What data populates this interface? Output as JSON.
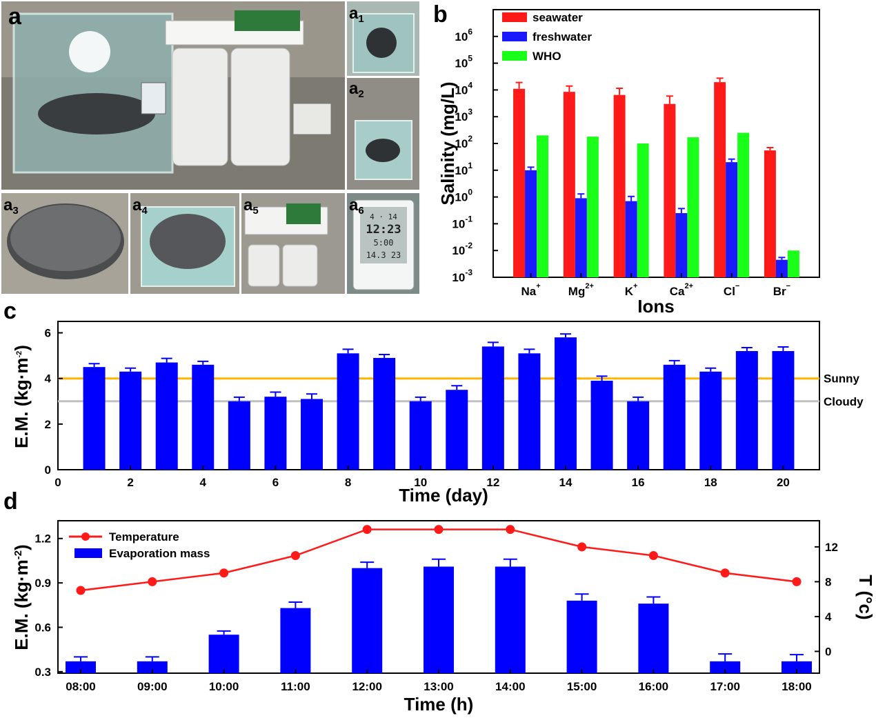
{
  "panels": {
    "a": "a",
    "a1": "a",
    "a2": "a",
    "a3": "a",
    "a4": "a",
    "a5": "a",
    "a6": "a",
    "a1_sub": "1",
    "a2_sub": "2",
    "a3_sub": "3",
    "a4_sub": "4",
    "a5_sub": "5",
    "a6_sub": "6",
    "b": "b",
    "c": "c",
    "d": "d"
  },
  "photos": {
    "a6_display": {
      "line1": "4 · 14",
      "line2": "12:23",
      "line3": "5:00",
      "line4": "14.3 23"
    }
  },
  "colors": {
    "seawater": "#ff1a1a",
    "freshwater": "#1a1aff",
    "who": "#1aff1a",
    "bar_blue": "#0000ff",
    "sunny": "#ffb400",
    "cloudy": "#c0c0c0",
    "temperature": "#ff1a1a"
  },
  "chart_data": [
    {
      "id": "b",
      "type": "bar",
      "scale": "log",
      "title": "",
      "xlabel": "Ions",
      "ylabel": "Salinity (mg/L)",
      "ylim": [
        0.001,
        10000000
      ],
      "yticks": [
        "10",
        "10",
        "10",
        "10",
        "10",
        "10",
        "10",
        "10",
        "10",
        "10"
      ],
      "ytick_exps": [
        "-3",
        "-2",
        "-1",
        "0",
        "1",
        "2",
        "3",
        "4",
        "5",
        "6"
      ],
      "categories": [
        "Na",
        "Mg",
        "K",
        "Ca",
        "Cl",
        "Br"
      ],
      "category_sups": [
        "+",
        "2+",
        "+",
        "2+",
        "−",
        "−"
      ],
      "series": [
        {
          "name": "seawater",
          "values": [
            11000,
            8500,
            6500,
            3000,
            19500,
            55
          ],
          "errors": [
            8000,
            5500,
            5000,
            2900,
            8000,
            15
          ]
        },
        {
          "name": "freshwater",
          "values": [
            10,
            0.9,
            0.7,
            0.25,
            20,
            0.0045
          ],
          "errors": [
            3,
            0.4,
            0.35,
            0.12,
            6,
            0.001
          ]
        },
        {
          "name": "WHO",
          "values": [
            200,
            180,
            100,
            170,
            250,
            0.01
          ],
          "errors": [
            0,
            0,
            0,
            0,
            0,
            0
          ]
        }
      ],
      "legend_position": "top-left"
    },
    {
      "id": "c",
      "type": "bar",
      "title": "",
      "xlabel": "Time (day)",
      "ylabel": "E.M. (kg·m",
      "ylabel_sup": "-2",
      "ylabel_end": ")",
      "xlim": [
        0,
        21
      ],
      "ylim": [
        0,
        6.5
      ],
      "xticks": [
        "0",
        "2",
        "4",
        "6",
        "8",
        "10",
        "12",
        "14",
        "16",
        "18",
        "20"
      ],
      "yticks": [
        "0",
        "2",
        "4",
        "6"
      ],
      "x": [
        1,
        2,
        3,
        4,
        5,
        6,
        7,
        8,
        9,
        10,
        11,
        12,
        13,
        14,
        15,
        16,
        17,
        18,
        19,
        20
      ],
      "values": [
        4.5,
        4.3,
        4.7,
        4.6,
        3.0,
        3.2,
        3.1,
        5.1,
        4.9,
        3.0,
        3.5,
        5.4,
        5.1,
        5.8,
        3.9,
        3.0,
        4.6,
        4.3,
        5.2,
        5.2
      ],
      "errors": [
        0.15,
        0.15,
        0.18,
        0.15,
        0.18,
        0.2,
        0.22,
        0.18,
        0.15,
        0.18,
        0.18,
        0.18,
        0.18,
        0.15,
        0.2,
        0.18,
        0.18,
        0.15,
        0.15,
        0.18
      ],
      "reference_lines": [
        {
          "name": "Sunny",
          "value": 4.0
        },
        {
          "name": "Cloudy",
          "value": 3.0
        }
      ]
    },
    {
      "id": "d",
      "type": "bar+line",
      "title": "",
      "xlabel": "Time (h)",
      "ylabel": "E.M. (kg·m",
      "ylabel_sup": "-2",
      "ylabel_end": ")",
      "y2label": "T (°c)",
      "categories": [
        "08:00",
        "09:00",
        "10:00",
        "11:00",
        "12:00",
        "13:00",
        "14:00",
        "15:00",
        "16:00",
        "17:00",
        "18:00"
      ],
      "ylim": [
        0.29,
        1.32
      ],
      "yticks": [
        "0.3",
        "0.6",
        "0.9",
        "1.2"
      ],
      "y2lim": [
        -2.5,
        15
      ],
      "y2ticks": [
        "0",
        "4",
        "8",
        "12"
      ],
      "series": [
        {
          "name": "Evaporation mass",
          "axis": "left",
          "values": [
            0.37,
            0.37,
            0.55,
            0.73,
            1.0,
            1.01,
            1.01,
            0.78,
            0.76,
            0.37,
            0.37
          ],
          "errors": [
            0.03,
            0.03,
            0.025,
            0.04,
            0.04,
            0.05,
            0.05,
            0.045,
            0.045,
            0.05,
            0.045
          ]
        },
        {
          "name": "Temperature",
          "axis": "right",
          "values": [
            7,
            8,
            9,
            11,
            14,
            14,
            14,
            12,
            11,
            9,
            8
          ]
        }
      ],
      "legend_position": "top-left"
    }
  ]
}
